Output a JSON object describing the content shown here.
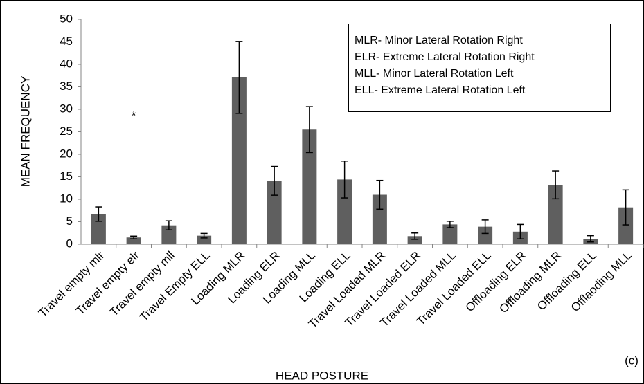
{
  "chart_data": {
    "type": "bar",
    "x_label": "HEAD POSTURE",
    "y_label": "MEAN FREQUENCY",
    "categories": [
      "Travel empty mlr",
      "Travel empty elr",
      "Travel empty mll",
      "Travel Empty ELL",
      "Loading MLR",
      "Loading ELR",
      "Loading MLL",
      "Loading ELL",
      "Travel Loaded MLR",
      "Travel Loaded ELR",
      "Travel Loaded MLL",
      "Travel Loaded ELL",
      "Offloading ELR",
      "Offloading MLR",
      "Offloading ELL",
      "Offlaoding MLL"
    ],
    "values": [
      6.7,
      1.5,
      4.2,
      1.9,
      37.1,
      14.1,
      25.5,
      14.4,
      11.0,
      1.8,
      4.4,
      3.9,
      2.8,
      13.2,
      1.2,
      8.2
    ],
    "errors": [
      1.6,
      0.3,
      1.0,
      0.5,
      8.0,
      3.2,
      5.1,
      4.1,
      3.2,
      0.7,
      0.7,
      1.5,
      1.6,
      3.1,
      0.7,
      3.9
    ],
    "color": "#5f5f5f",
    "ylim": [
      0,
      50
    ],
    "yticks": [
      0,
      5,
      10,
      15,
      20,
      25,
      30,
      35,
      40,
      45,
      50
    ],
    "grid": false,
    "annotation": "*",
    "legend_notes": [
      "MLR- Minor Lateral Rotation Right",
      "ELR- Extreme Lateral Rotation  Right",
      "MLL- Minor Lateral Rotation Left",
      "ELL- Extreme Lateral Rotation Left"
    ],
    "panel_label": "(c)"
  }
}
